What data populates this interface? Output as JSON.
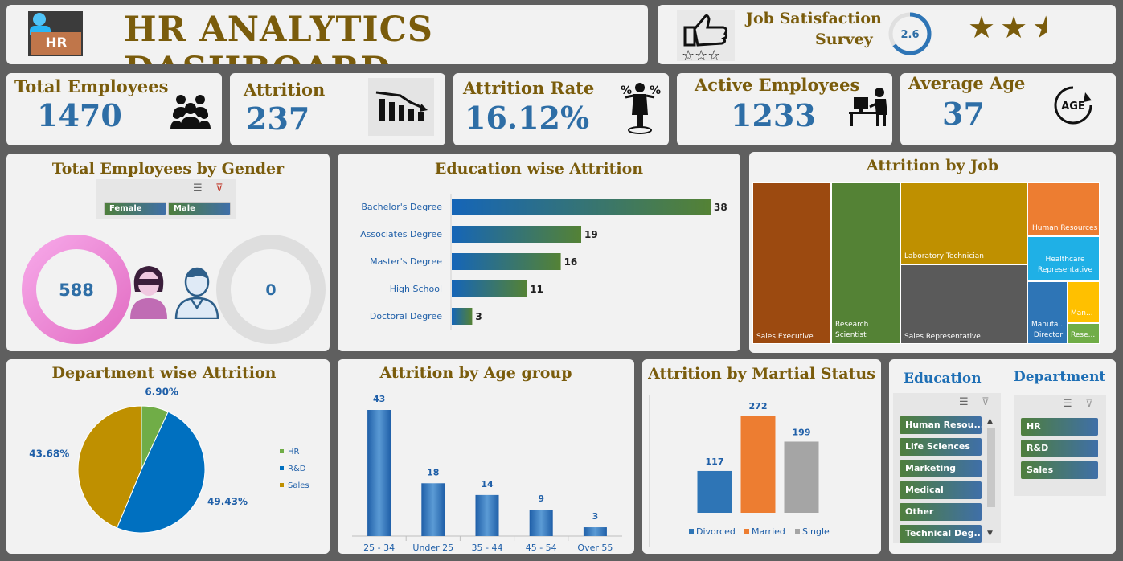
{
  "title": "HR ANALYTICS DASHBOARD",
  "logo_text": "HR",
  "survey": {
    "title_line1": "Job Satisfaction",
    "title_line2": "Survey",
    "score": "2.6",
    "score_value": 2.6,
    "score_max": 4,
    "stars_filled": 2,
    "stars_half": 1
  },
  "kpis": [
    {
      "label": "Total Employees",
      "value": "1470",
      "icon": "people-group-icon"
    },
    {
      "label": "Attrition",
      "value": "237",
      "icon": "declining-chart-icon"
    },
    {
      "label": "Attrition Rate",
      "value": "16.12%",
      "icon": "percent-person-icon"
    },
    {
      "label": "Active Employees",
      "value": "1233",
      "icon": "desk-worker-icon"
    },
    {
      "label": "Average Age",
      "value": "37",
      "icon": "age-cycle-icon"
    }
  ],
  "gender": {
    "title": "Total Employees by Gender",
    "slicer": [
      "Female",
      "Male"
    ],
    "female_value": "588",
    "male_value": "0"
  },
  "education_chart": {
    "title": "Education wise Attrition",
    "chart_data": {
      "type": "bar",
      "categories": [
        "Bachelor's Degree",
        "Associates Degree",
        "Master's Degree",
        "High School",
        "Doctoral Degree"
      ],
      "values": [
        38,
        19,
        16,
        11,
        3
      ],
      "value_labels": [
        "38",
        "19",
        "16",
        "11",
        "3"
      ]
    }
  },
  "job_chart": {
    "title": "Attrition by Job",
    "chart_data": {
      "type": "treemap",
      "categories": [
        "Sales Executive",
        "Research Scientist",
        "Laboratory Technician",
        "Sales Representative",
        "Human Resources",
        "Healthcare Representative",
        "Manufa... Director",
        "Man...",
        "Rese..."
      ],
      "colors": [
        "#9c4a10",
        "#548235",
        "#bf9000",
        "#5a5a5a",
        "#ed7d31",
        "#1fb0e6",
        "#2e75b6",
        "#ffc000",
        "#70ad47"
      ]
    }
  },
  "department_chart": {
    "title": "Department wise Attrition",
    "chart_data": {
      "type": "pie",
      "categories": [
        "HR",
        "R&D",
        "Sales"
      ],
      "values": [
        6.9,
        49.43,
        43.68
      ],
      "labels": [
        "6.90%",
        "49.43%",
        "43.68%"
      ],
      "colors": [
        "#70ad47",
        "#0070c0",
        "#bf9000"
      ],
      "legend_position": "right"
    }
  },
  "age_chart": {
    "title": "Attrition by Age group",
    "chart_data": {
      "type": "bar",
      "categories": [
        "25 - 34",
        "Under 25",
        "35 - 44",
        "45 - 54",
        "Over 55"
      ],
      "values": [
        43,
        18,
        14,
        9,
        3
      ],
      "value_labels": [
        "43",
        "18",
        "14",
        "9",
        "3"
      ]
    }
  },
  "marital_chart": {
    "title": "Attrition by Martial Status",
    "chart_data": {
      "type": "bar",
      "categories": [
        "Divorced",
        "Married",
        "Single"
      ],
      "values": [
        117,
        272,
        199
      ],
      "value_labels": [
        "117",
        "272",
        "199"
      ],
      "colors": [
        "#2e75b6",
        "#ed7d31",
        "#a5a5a5"
      ],
      "legend_position": "bottom"
    }
  },
  "slicers": {
    "education_title": "Education",
    "education_items": [
      "Human Resou...",
      "Life Sciences",
      "Marketing",
      "Medical",
      "Other",
      "Technical Deg..."
    ],
    "department_title": "Department",
    "department_items": [
      "HR",
      "R&D",
      "Sales"
    ]
  }
}
